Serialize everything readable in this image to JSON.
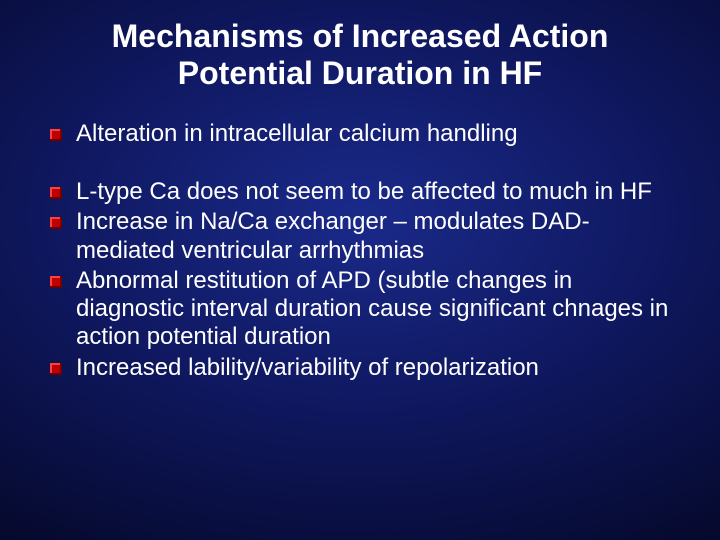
{
  "slide": {
    "title": "Mechanisms of Increased Action Potential Duration in HF",
    "title_fontsize": 32,
    "title_color": "#ffffff",
    "body_fontsize": 24,
    "body_color": "#ffffff",
    "bullet_color": "#c00000",
    "background_gradient": {
      "inner": "#1a2a8a",
      "mid": "#0f1860",
      "outer": "#000015"
    },
    "bullets": [
      {
        "text": "Alteration in intracellular calcium handling",
        "spaced": true
      },
      {
        "text": "L-type Ca does not seem to be affected to much in HF",
        "spaced": false
      },
      {
        "text": "Increase in Na/Ca exchanger – modulates DAD-mediated ventricular arrhythmias",
        "spaced": false
      },
      {
        "text": "Abnormal restitution of APD (subtle changes in diagnostic interval duration cause significant chnages in action potential duration",
        "spaced": false
      },
      {
        "text": "Increased lability/variability of repolarization",
        "spaced": false
      }
    ]
  }
}
